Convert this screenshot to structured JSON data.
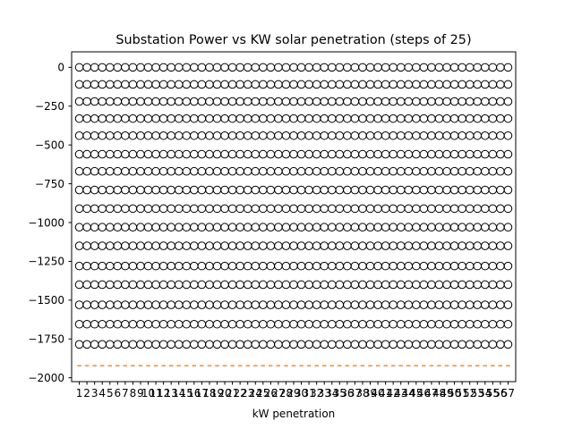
{
  "chart_data": {
    "type": "box",
    "title": "Substation Power vs KW solar penetration (steps of 25)",
    "xlabel": "kW penetration",
    "ylabel": "",
    "categories": [
      "1",
      "2",
      "3",
      "4",
      "5",
      "6",
      "7",
      "8",
      "9",
      "10",
      "11",
      "12",
      "13",
      "14",
      "15",
      "16",
      "17",
      "18",
      "19",
      "20",
      "21",
      "22",
      "23",
      "24",
      "25",
      "26",
      "27",
      "28",
      "29",
      "30",
      "31",
      "32",
      "33",
      "34",
      "35",
      "36",
      "37",
      "38",
      "39",
      "40",
      "41",
      "42",
      "43",
      "44",
      "45",
      "46",
      "47",
      "48",
      "49",
      "50",
      "51",
      "52",
      "53",
      "54",
      "55",
      "56",
      "57"
    ],
    "ylim": [
      -2025,
      100
    ],
    "yticks": [
      0,
      -250,
      -500,
      -750,
      -1000,
      -1250,
      -1500,
      -1750,
      -2000
    ],
    "grid": false,
    "box_median": -1922,
    "box_q1": -1922,
    "box_q3": -1922,
    "median_color": "#ff7f0e",
    "box_color": "#000000",
    "outlier_values": [
      0,
      -110,
      -220,
      -330,
      -440,
      -560,
      -670,
      -790,
      -910,
      -1030,
      -1150,
      -1280,
      -1400,
      -1530,
      -1655,
      -1785
    ],
    "outlier_style": "open-circle"
  }
}
